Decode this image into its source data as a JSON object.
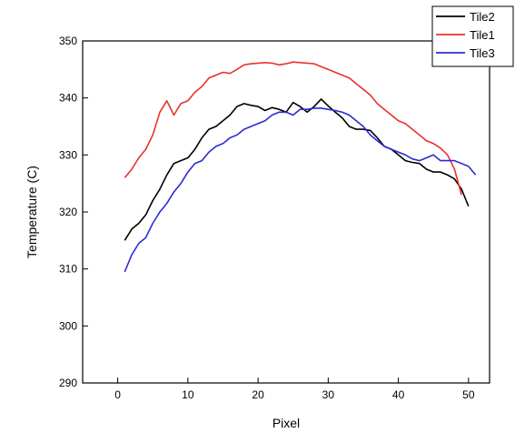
{
  "chart_data": {
    "type": "line",
    "xlabel": "Pixel",
    "ylabel": "Temperature (C)",
    "xlim": [
      -5,
      53
    ],
    "ylim": [
      290,
      350
    ],
    "xticks": [
      0,
      10,
      20,
      30,
      40,
      50
    ],
    "yticks": [
      290,
      300,
      310,
      320,
      330,
      340,
      350
    ],
    "grid": false,
    "legend_position": "top-right",
    "series": [
      {
        "name": "Tile2",
        "color": "#000000",
        "x": [
          1,
          2,
          3,
          4,
          5,
          6,
          7,
          8,
          9,
          10,
          11,
          12,
          13,
          14,
          15,
          16,
          17,
          18,
          19,
          20,
          21,
          22,
          23,
          24,
          25,
          26,
          27,
          28,
          29,
          30,
          31,
          32,
          33,
          34,
          35,
          36,
          37,
          38,
          39,
          40,
          41,
          42,
          43,
          44,
          45,
          46,
          47,
          48,
          49,
          50
        ],
        "y": [
          315,
          317,
          318,
          319.5,
          322,
          324,
          326.5,
          328.5,
          329,
          329.5,
          331,
          333,
          334.5,
          335,
          336,
          337,
          338.5,
          339,
          338.7,
          338.5,
          337.8,
          338.3,
          338,
          337.5,
          339.2,
          338.5,
          337.5,
          338.5,
          339.8,
          338.6,
          337.5,
          336.5,
          335,
          334.5,
          334.5,
          334.3,
          333,
          331.5,
          331,
          330,
          329,
          328.7,
          328.5,
          327.5,
          327,
          327,
          326.5,
          325.8,
          324,
          321
        ]
      },
      {
        "name": "Tile1",
        "color": "#e8322e",
        "x": [
          1,
          2,
          3,
          4,
          5,
          6,
          7,
          8,
          9,
          10,
          11,
          12,
          13,
          14,
          15,
          16,
          17,
          18,
          19,
          20,
          21,
          22,
          23,
          24,
          25,
          26,
          27,
          28,
          29,
          30,
          31,
          32,
          33,
          34,
          35,
          36,
          37,
          38,
          39,
          40,
          41,
          42,
          43,
          44,
          45,
          46,
          47,
          48,
          49
        ],
        "y": [
          326,
          327.5,
          329.5,
          331,
          333.5,
          337.5,
          339.5,
          337,
          339,
          339.5,
          341,
          342,
          343.5,
          344,
          344.5,
          344.3,
          345,
          345.8,
          346,
          346.1,
          346.2,
          346.1,
          345.8,
          346,
          346.3,
          346.2,
          346.1,
          346,
          345.5,
          345,
          344.5,
          344,
          343.5,
          342.5,
          341.5,
          340.5,
          339,
          338,
          337,
          336,
          335.5,
          334.5,
          333.5,
          332.5,
          332,
          331.2,
          330,
          327.5,
          323
        ]
      },
      {
        "name": "Tile3",
        "color": "#2b2bd4",
        "x": [
          1,
          2,
          3,
          4,
          5,
          6,
          7,
          8,
          9,
          10,
          11,
          12,
          13,
          14,
          15,
          16,
          17,
          18,
          19,
          20,
          21,
          22,
          23,
          24,
          25,
          26,
          27,
          28,
          29,
          30,
          31,
          32,
          33,
          34,
          35,
          36,
          37,
          38,
          39,
          40,
          41,
          42,
          43,
          44,
          45,
          46,
          47,
          48,
          49,
          50,
          51
        ],
        "y": [
          309.5,
          312.5,
          314.5,
          315.5,
          318,
          320,
          321.5,
          323.5,
          325,
          327,
          328.5,
          329,
          330.5,
          331.5,
          332,
          333,
          333.5,
          334.5,
          335,
          335.5,
          336,
          337,
          337.5,
          337.5,
          337,
          338,
          338,
          338.2,
          338.2,
          338,
          337.8,
          337.5,
          337,
          336,
          335,
          333.5,
          332.5,
          331.5,
          331,
          330.5,
          330,
          329.3,
          329,
          329.5,
          330,
          329,
          329,
          329,
          328.5,
          328,
          326.5
        ]
      }
    ]
  }
}
